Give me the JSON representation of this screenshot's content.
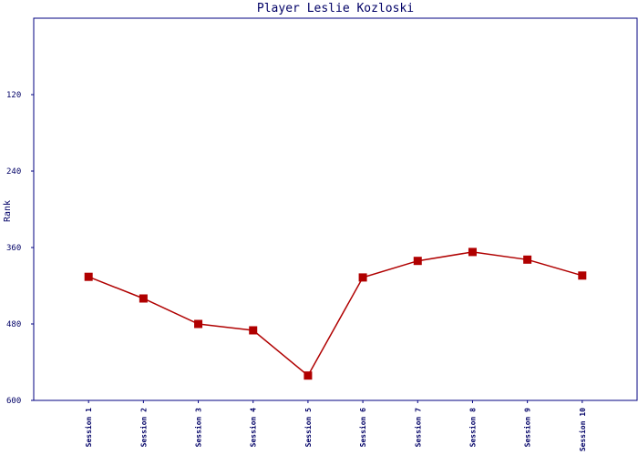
{
  "chart_data": {
    "type": "line",
    "title": "Player Leslie Kozloski",
    "y_label": "Rank",
    "categories": [
      "Session 1",
      "Session 2",
      "Session 3",
      "Session 4",
      "Session 5",
      "Session 6",
      "Session 7",
      "Session 8",
      "Session 9",
      "Session 10"
    ],
    "series": [
      {
        "name": "Rank",
        "color": "#b00000",
        "values": [
          406,
          440,
          480,
          490,
          561,
          407,
          381,
          367,
          379,
          404
        ]
      }
    ],
    "ylim": [
      0,
      600
    ],
    "y_inverted": true,
    "yticks": [
      120,
      240,
      360,
      480,
      600
    ]
  }
}
